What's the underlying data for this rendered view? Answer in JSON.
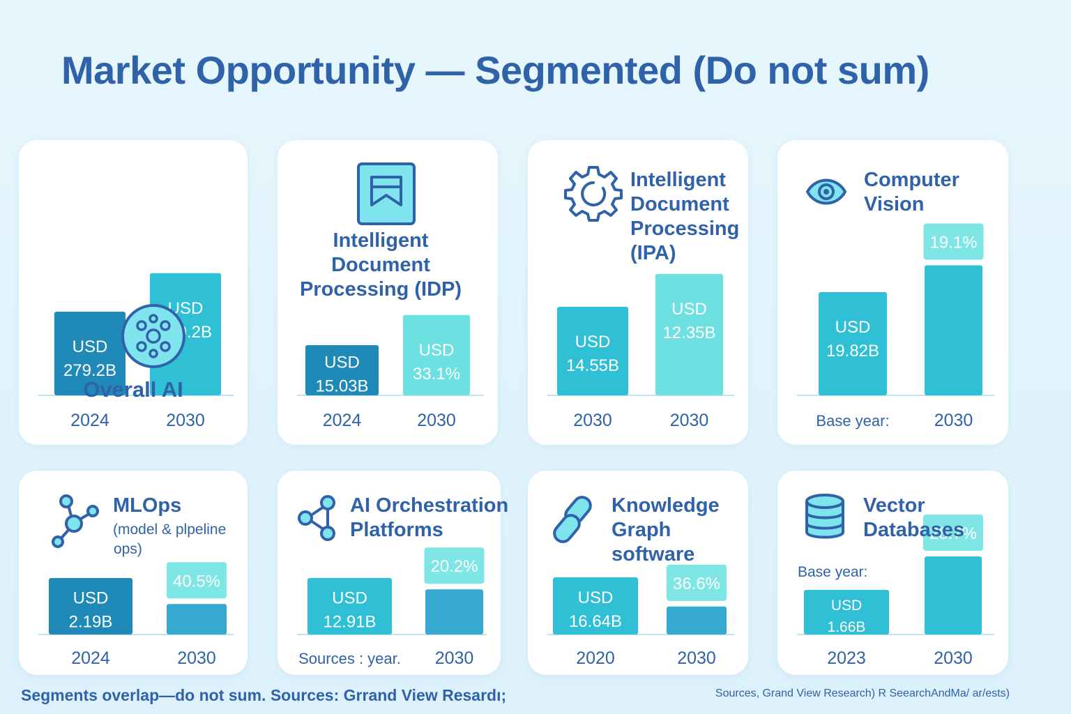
{
  "title": "Market Opportunity — Segmented (Do not sum)",
  "colors": {
    "dark_blue": "#1f8ab8",
    "teal": "#2fc0d6",
    "mid_blue": "#35a9cf",
    "light_teal": "#6de0e2",
    "badge": "#7fe6e6",
    "text": "#2f62a8"
  },
  "footer": {
    "left": "Segments overlap—do not sum.  Sources: Grrand View Resardı;",
    "right": "Sources, Grand View  Research) R SeearchAndMa/ ar/ests)"
  },
  "chart_data": [
    {
      "type": "bar",
      "title": "Overall AI",
      "icon": "neural-network-icon",
      "categories": [
        "2024",
        "2030"
      ],
      "bar_labels": [
        [
          "USD",
          "279.2B"
        ],
        [
          "USD",
          "279.2B"
        ]
      ],
      "values": [
        1.0,
        1.46
      ],
      "colors": [
        "#1f8ab8",
        "#2fc0d6"
      ]
    },
    {
      "type": "bar",
      "title": [
        "Intelligent",
        "Document",
        "Processing (IDP)"
      ],
      "icon": "document-icon",
      "categories": [
        "2024",
        "2030"
      ],
      "bar_labels": [
        [
          "USD",
          "15.03B"
        ],
        [
          "USD",
          "33.1%"
        ]
      ],
      "values": [
        1.0,
        1.6
      ],
      "colors": [
        "#1f8ab8",
        "#6de0e2"
      ]
    },
    {
      "type": "bar",
      "title": [
        "Intelligent",
        "Document",
        "Processing",
        "(IPA)"
      ],
      "icon": "gear-icon",
      "categories": [
        "2030",
        "2030"
      ],
      "bar_labels": [
        [
          "USD",
          "14.55B"
        ],
        [
          "USD",
          "12.35B"
        ]
      ],
      "values": [
        1.0,
        1.37
      ],
      "colors": [
        "#2fc0d6",
        "#6de0e2"
      ]
    },
    {
      "type": "bar",
      "title": [
        "Computer",
        "Vision"
      ],
      "icon": "eye-icon",
      "categories": [
        "Base year:",
        "2030"
      ],
      "bar_labels": [
        [
          "USD",
          "19.82B"
        ],
        []
      ],
      "badge": "19.1%",
      "values": [
        1.0,
        1.26
      ],
      "colors": [
        "#2fc0d6",
        "#2fc0d6"
      ]
    },
    {
      "type": "bar",
      "title": [
        "MLOps"
      ],
      "subtitle": [
        "(model & plpeline",
        "ops)"
      ],
      "icon": "network-nodes-icon",
      "categories": [
        "2024",
        "2030"
      ],
      "bar_labels": [
        [
          "USD",
          "2.19B"
        ],
        []
      ],
      "badge": "40.5%",
      "values": [
        1.0,
        0.54
      ],
      "colors": [
        "#1f8ab8",
        "#35a9cf"
      ]
    },
    {
      "type": "bar",
      "title": [
        "AI Orchestration",
        "Platforms"
      ],
      "icon": "share-nodes-icon",
      "categories": [
        "Sources : year.",
        "2030"
      ],
      "bar_labels": [
        [
          "USD",
          "12.91B"
        ],
        []
      ],
      "badge": "20.2%",
      "values": [
        1.0,
        0.8
      ],
      "colors": [
        "#2fc0d6",
        "#35a9cf"
      ]
    },
    {
      "type": "bar",
      "title": [
        "Knowledge",
        "Graph",
        "software"
      ],
      "icon": "chain-link-icon",
      "categories": [
        "2020",
        "2030"
      ],
      "bar_labels": [
        [
          "USD",
          "16.64B"
        ],
        []
      ],
      "badge": "36.6%",
      "values": [
        1.0,
        0.49
      ],
      "colors": [
        "#2fc0d6",
        "#35a9cf"
      ]
    },
    {
      "type": "bar",
      "title": [
        "Vector",
        "Databases"
      ],
      "subtitle": [
        "Base year:"
      ],
      "icon": "database-icon",
      "categories": [
        "2023",
        "2030"
      ],
      "bar_labels": [
        [
          "USD",
          "1.66B"
        ],
        []
      ],
      "badge": "28.7%",
      "values": [
        1.0,
        1.75
      ],
      "colors": [
        "#2fc0d6",
        "#2fc0d6"
      ]
    }
  ]
}
